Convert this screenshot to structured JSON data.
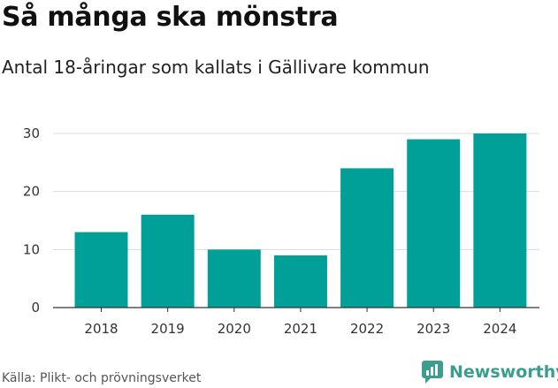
{
  "header": {
    "title": "Så många ska mönstra",
    "subtitle": "Antal 18-åringar som kallats i Gällivare kommun"
  },
  "footer": {
    "source": "Källa: Plikt- och prövningsverket",
    "brand": "Newsworthy",
    "brand_color": "#3a9e8f"
  },
  "chart_data": {
    "type": "bar",
    "title": "Så många ska mönstra",
    "subtitle": "Antal 18-åringar som kallats i Gällivare kommun",
    "categories": [
      "2018",
      "2019",
      "2020",
      "2021",
      "2022",
      "2023",
      "2024"
    ],
    "values": [
      13,
      16,
      10,
      9,
      24,
      29,
      30
    ],
    "ylim": [
      0,
      30
    ],
    "yticks": [
      0,
      10,
      20,
      30
    ],
    "xlabel": "",
    "ylabel": "",
    "grid": true,
    "bar_color": "#00a098"
  }
}
